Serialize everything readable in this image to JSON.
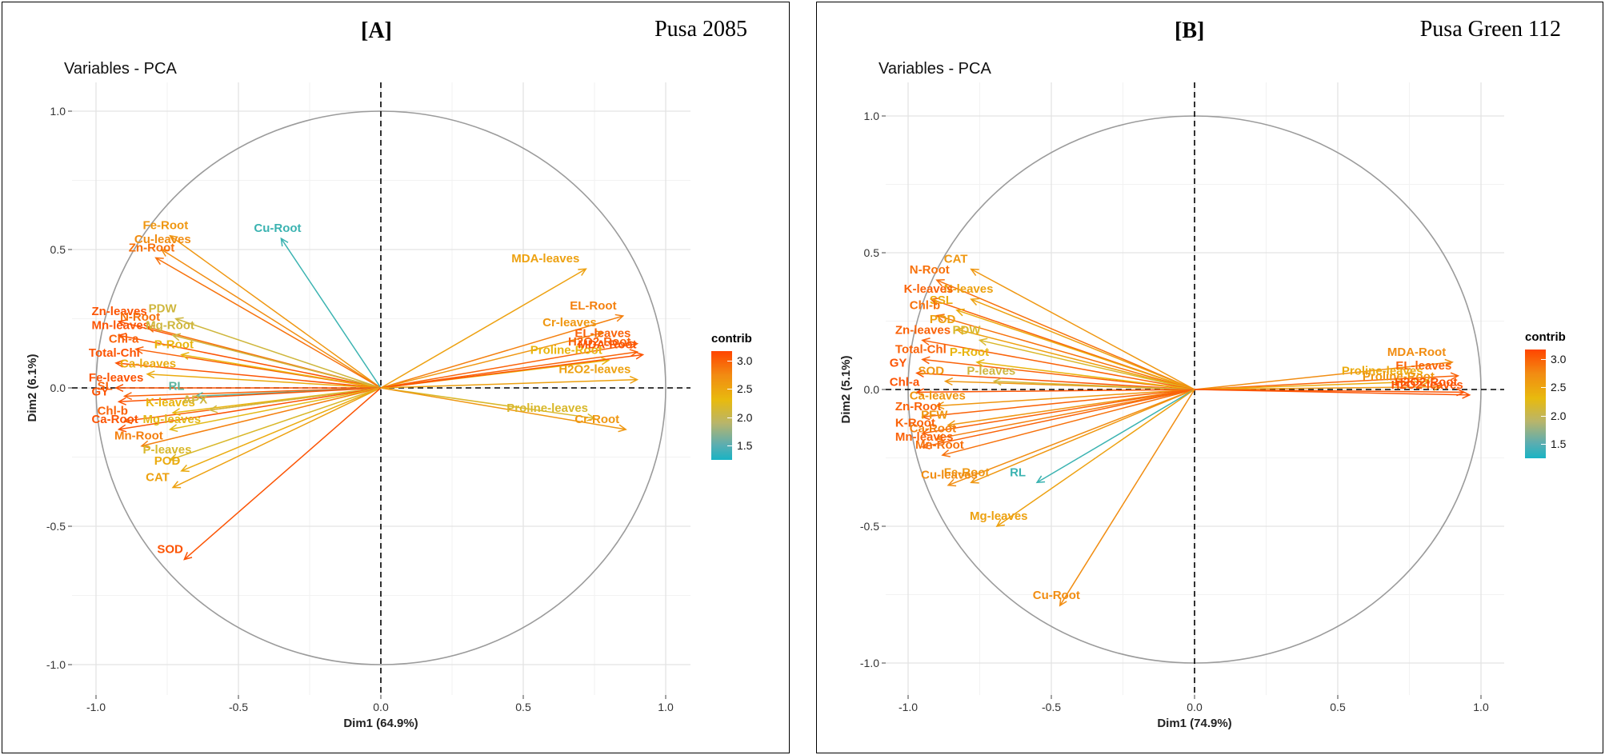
{
  "legend": {
    "title": "contrib",
    "ticks": [
      "3.0",
      "2.5",
      "2.0",
      "1.5"
    ]
  },
  "chart_data": [
    {
      "type": "scatter",
      "subtype": "pca-variable-correlation-circle",
      "panel_label": "[A]",
      "cultivar": "Pusa 2085",
      "title": "Variables - PCA",
      "xlabel": "Dim1 (64.9%)",
      "ylabel": "Dim2 (6.1%)",
      "xlim": [
        -1.0,
        1.0
      ],
      "ylim": [
        -1.0,
        1.0
      ],
      "x_ticks": [
        "-1.0",
        "-0.5",
        "0.0",
        "0.5",
        "1.0"
      ],
      "y_ticks": [
        "1.0",
        "0.5",
        "0.0",
        "-0.5",
        "-1.0"
      ],
      "color_scale": {
        "name": "contrib",
        "range": [
          1.3,
          3.2
        ],
        "colors": [
          "#19b3c4",
          "#b9b56a",
          "#e8ba0e",
          "#f28b12",
          "#ff4500"
        ]
      },
      "variables": [
        {
          "name": "Fe-Root",
          "x": -0.74,
          "y": 0.55,
          "contrib": 2.6
        },
        {
          "name": "Cu-leaves",
          "x": -0.77,
          "y": 0.5,
          "contrib": 2.7
        },
        {
          "name": "Zn-Root",
          "x": -0.79,
          "y": 0.47,
          "contrib": 2.9
        },
        {
          "name": "Cu-Root",
          "x": -0.35,
          "y": 0.54,
          "contrib": 1.4
        },
        {
          "name": "Zn-leaves",
          "x": -0.92,
          "y": 0.24,
          "contrib": 3.1
        },
        {
          "name": "Mn-leaves",
          "x": -0.92,
          "y": 0.19,
          "contrib": 3.1
        },
        {
          "name": "PDW",
          "x": -0.72,
          "y": 0.25,
          "contrib": 2.0
        },
        {
          "name": "N-Root",
          "x": -0.82,
          "y": 0.22,
          "contrib": 2.9
        },
        {
          "name": "Mg-Root",
          "x": -0.73,
          "y": 0.19,
          "contrib": 2.0
        },
        {
          "name": "Chl-a",
          "x": -0.86,
          "y": 0.14,
          "contrib": 3.0
        },
        {
          "name": "P-Root",
          "x": -0.7,
          "y": 0.12,
          "contrib": 2.3
        },
        {
          "name": "Total-Chl",
          "x": -0.93,
          "y": 0.09,
          "contrib": 3.1
        },
        {
          "name": "Ca-leaves",
          "x": -0.82,
          "y": 0.05,
          "contrib": 2.4
        },
        {
          "name": "Fe-leaves",
          "x": -0.93,
          "y": 0.0,
          "contrib": 3.1
        },
        {
          "name": "SL",
          "x": -0.9,
          "y": -0.03,
          "contrib": 3.0
        },
        {
          "name": "RL",
          "x": -0.65,
          "y": -0.03,
          "contrib": 1.5
        },
        {
          "name": "GY",
          "x": -0.92,
          "y": -0.05,
          "contrib": 3.1
        },
        {
          "name": "Chl-b",
          "x": -0.9,
          "y": -0.12,
          "contrib": 3.0
        },
        {
          "name": "K-leaves",
          "x": -0.73,
          "y": -0.09,
          "contrib": 2.3
        },
        {
          "name": "APX",
          "x": -0.6,
          "y": -0.08,
          "contrib": 2.0
        },
        {
          "name": "Ca-Root",
          "x": -0.92,
          "y": -0.15,
          "contrib": 3.1
        },
        {
          "name": "Mg-leaves",
          "x": -0.74,
          "y": -0.15,
          "contrib": 2.2
        },
        {
          "name": "Mn-Root",
          "x": -0.84,
          "y": -0.21,
          "contrib": 2.8
        },
        {
          "name": "P-leaves",
          "x": -0.74,
          "y": -0.26,
          "contrib": 2.1
        },
        {
          "name": "POD",
          "x": -0.7,
          "y": -0.3,
          "contrib": 2.4
        },
        {
          "name": "CAT",
          "x": -0.73,
          "y": -0.36,
          "contrib": 2.5
        },
        {
          "name": "SOD",
          "x": -0.69,
          "y": -0.62,
          "contrib": 3.1
        },
        {
          "name": "MDA-leaves",
          "x": 0.72,
          "y": 0.43,
          "contrib": 2.5
        },
        {
          "name": "EL-Root",
          "x": 0.85,
          "y": 0.26,
          "contrib": 2.8
        },
        {
          "name": "Cr-leaves",
          "x": 0.78,
          "y": 0.2,
          "contrib": 2.6
        },
        {
          "name": "EL-leaves",
          "x": 0.9,
          "y": 0.16,
          "contrib": 3.0
        },
        {
          "name": "H2O2-Root",
          "x": 0.9,
          "y": 0.13,
          "contrib": 3.0
        },
        {
          "name": "Proline-Root",
          "x": 0.8,
          "y": 0.1,
          "contrib": 2.3
        },
        {
          "name": "MDA-Root",
          "x": 0.92,
          "y": 0.12,
          "contrib": 3.1
        },
        {
          "name": "H2O2-leaves",
          "x": 0.9,
          "y": 0.03,
          "contrib": 2.5
        },
        {
          "name": "Proline-leaves",
          "x": 0.75,
          "y": -0.11,
          "contrib": 2.1
        },
        {
          "name": "Cr-Root",
          "x": 0.86,
          "y": -0.15,
          "contrib": 2.6
        }
      ]
    },
    {
      "type": "scatter",
      "subtype": "pca-variable-correlation-circle",
      "panel_label": "[B]",
      "cultivar": "Pusa Green 112",
      "title": "Variables - PCA",
      "xlabel": "Dim1 (74.9%)",
      "ylabel": "Dim2 (5.1%)",
      "xlim": [
        -1.0,
        1.0
      ],
      "ylim": [
        -1.0,
        1.0
      ],
      "x_ticks": [
        "-1.0",
        "-0.5",
        "0.0",
        "0.5",
        "1.0"
      ],
      "y_ticks": [
        "1.0",
        "0.5",
        "0.0",
        "-0.5",
        "-1.0"
      ],
      "color_scale": {
        "name": "contrib",
        "range": [
          1.3,
          3.2
        ],
        "colors": [
          "#19b3c4",
          "#b9b56a",
          "#e8ba0e",
          "#f28b12",
          "#ff4500"
        ]
      },
      "variables": [
        {
          "name": "CAT",
          "x": -0.78,
          "y": 0.44,
          "contrib": 2.6
        },
        {
          "name": "N-Root",
          "x": -0.9,
          "y": 0.4,
          "contrib": 2.9
        },
        {
          "name": "N-leaves",
          "x": -0.78,
          "y": 0.33,
          "contrib": 2.5
        },
        {
          "name": "K-leaves",
          "x": -0.92,
          "y": 0.33,
          "contrib": 3.0
        },
        {
          "name": "SSL",
          "x": -0.83,
          "y": 0.29,
          "contrib": 2.4
        },
        {
          "name": "Chl-b",
          "x": -0.9,
          "y": 0.27,
          "contrib": 2.9
        },
        {
          "name": "POD",
          "x": -0.83,
          "y": 0.22,
          "contrib": 2.5
        },
        {
          "name": "PDW",
          "x": -0.75,
          "y": 0.18,
          "contrib": 2.1
        },
        {
          "name": "Zn-leaves",
          "x": -0.95,
          "y": 0.18,
          "contrib": 3.0
        },
        {
          "name": "Total-Chl",
          "x": -0.95,
          "y": 0.11,
          "contrib": 3.0
        },
        {
          "name": "P-Root",
          "x": -0.76,
          "y": 0.1,
          "contrib": 2.3
        },
        {
          "name": "GY",
          "x": -0.97,
          "y": 0.06,
          "contrib": 3.1
        },
        {
          "name": "SOD",
          "x": -0.87,
          "y": 0.03,
          "contrib": 2.6
        },
        {
          "name": "P-leaves",
          "x": -0.7,
          "y": 0.03,
          "contrib": 2.0
        },
        {
          "name": "Chl-a",
          "x": -0.97,
          "y": -0.01,
          "contrib": 3.1
        },
        {
          "name": "Ca-leaves",
          "x": -0.9,
          "y": -0.06,
          "contrib": 2.6
        },
        {
          "name": "PFW",
          "x": -0.86,
          "y": -0.13,
          "contrib": 2.6
        },
        {
          "name": "Zn-Root",
          "x": -0.95,
          "y": -0.1,
          "contrib": 3.0
        },
        {
          "name": "Ca-Root",
          "x": -0.9,
          "y": -0.18,
          "contrib": 2.8
        },
        {
          "name": "K-Root",
          "x": -0.95,
          "y": -0.16,
          "contrib": 3.0
        },
        {
          "name": "Mn-Root",
          "x": -0.88,
          "y": -0.24,
          "contrib": 2.9
        },
        {
          "name": "Mn-leaves",
          "x": -0.95,
          "y": -0.21,
          "contrib": 3.0
        },
        {
          "name": "Fe-Root",
          "x": -0.78,
          "y": -0.34,
          "contrib": 2.6
        },
        {
          "name": "Cu-leaves",
          "x": -0.86,
          "y": -0.35,
          "contrib": 2.7
        },
        {
          "name": "RL",
          "x": -0.55,
          "y": -0.34,
          "contrib": 1.4
        },
        {
          "name": "Mg-leaves",
          "x": -0.69,
          "y": -0.5,
          "contrib": 2.5
        },
        {
          "name": "Cu-Root",
          "x": -0.47,
          "y": -0.79,
          "contrib": 2.7
        },
        {
          "name": "MDA-Root",
          "x": 0.9,
          "y": 0.1,
          "contrib": 2.7
        },
        {
          "name": "EL-leaves",
          "x": 0.92,
          "y": 0.05,
          "contrib": 3.0
        },
        {
          "name": "Proline-leaves",
          "x": 0.82,
          "y": 0.03,
          "contrib": 2.4
        },
        {
          "name": "Proline-Root",
          "x": 0.86,
          "y": 0.01,
          "contrib": 2.6
        },
        {
          "name": "H2O2-Root",
          "x": 0.94,
          "y": -0.01,
          "contrib": 3.1
        },
        {
          "name": "H2O2-leaves",
          "x": 0.96,
          "y": -0.02,
          "contrib": 3.1
        }
      ]
    }
  ]
}
